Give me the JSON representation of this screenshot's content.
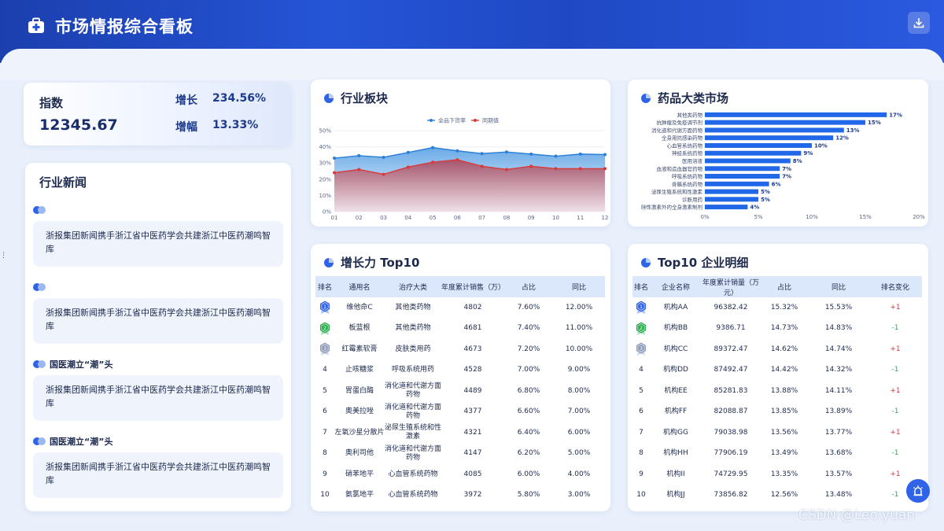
{
  "header": {
    "title": "市场情报综合看板"
  },
  "index_card": {
    "label": "指数",
    "value": "12345.67",
    "growth_label": "增长",
    "growth_value": "234.56%",
    "rise_label": "增幅",
    "rise_value": "13.33%"
  },
  "news": {
    "title": "行业新闻",
    "items": [
      {
        "tag": "",
        "text": "浙报集团新闻携手浙江省中医药学会共建浙江中医药潮鸣智库"
      },
      {
        "tag": "",
        "text": "浙报集团新闻携手浙江省中医药学会共建浙江中医药潮鸣智库"
      },
      {
        "tag": "国医潮立“潮”头",
        "text": "浙报集团新闻携手浙江省中医药学会共建浙江中医药潮鸣智库"
      },
      {
        "tag": "国医潮立“潮”头",
        "text": "浙报集团新闻携手浙江省中医药学会共建浙江中医药潮鸣智库"
      }
    ]
  },
  "sector_panel": {
    "title": "行业板块"
  },
  "drug_panel": {
    "title": "药品大类市场"
  },
  "growth_panel": {
    "title": "增长力 Top10",
    "headers": [
      "排名",
      "通用名",
      "治疗大类",
      "年度累计销售（万）",
      "占比",
      "同比"
    ],
    "rows": [
      [
        "1",
        "维他命C",
        "其他类药物",
        "4802",
        "7.60%",
        "12.00%"
      ],
      [
        "2",
        "板蓝根",
        "其他类药物",
        "4681",
        "7.40%",
        "11.00%"
      ],
      [
        "3",
        "红霉素软膏",
        "皮肤类用药",
        "4673",
        "7.20%",
        "10.00%"
      ],
      [
        "4",
        "止咳糖浆",
        "呼吸系统用药",
        "4528",
        "7.00%",
        "9.00%"
      ],
      [
        "5",
        "胃蛋白酶",
        "消化道和代谢方面药物",
        "4489",
        "6.80%",
        "8.00%"
      ],
      [
        "6",
        "奥美拉唑",
        "消化道和代谢方面药物",
        "4377",
        "6.60%",
        "7.00%"
      ],
      [
        "7",
        "左氧沙星分散片",
        "泌尿生殖系统和性激素",
        "4321",
        "6.40%",
        "6.00%"
      ],
      [
        "8",
        "奥利司他",
        "消化道和代谢方面药物",
        "4147",
        "6.20%",
        "5.00%"
      ],
      [
        "9",
        "硝苯地平",
        "心血管系统药物",
        "4085",
        "6.00%",
        "4.00%"
      ],
      [
        "10",
        "氨氯地平",
        "心血管系统药物",
        "3972",
        "5.80%",
        "3.00%"
      ]
    ]
  },
  "company_panel": {
    "title": "Top10 企业明细",
    "headers": [
      "排名",
      "企业名称",
      "年度累计销量（万元）",
      "占比",
      "同比",
      "排名变化"
    ],
    "rows": [
      [
        "1",
        "机构AA",
        "96382.42",
        "15.32%",
        "15.53%",
        "+1"
      ],
      [
        "2",
        "机构BB",
        "9386.71",
        "14.73%",
        "14.83%",
        "-1"
      ],
      [
        "3",
        "机构CC",
        "89372.47",
        "14.62%",
        "14.74%",
        "+1"
      ],
      [
        "4",
        "机构DD",
        "87492.47",
        "14.42%",
        "14.32%",
        "-1"
      ],
      [
        "5",
        "机构EE",
        "85281.83",
        "13.88%",
        "14.11%",
        "+1"
      ],
      [
        "6",
        "机构FF",
        "82088.87",
        "13.85%",
        "13.89%",
        "-1"
      ],
      [
        "7",
        "机构GG",
        "79038.98",
        "13.56%",
        "13.77%",
        "+1"
      ],
      [
        "8",
        "机构HH",
        "77906.19",
        "13.49%",
        "13.68%",
        "-1"
      ],
      [
        "9",
        "机构II",
        "74729.95",
        "13.35%",
        "13.57%",
        "+1"
      ],
      [
        "10",
        "机构JJ",
        "73856.82",
        "12.56%",
        "13.48%",
        "-1"
      ]
    ]
  },
  "colors": {
    "accent": "#2f63e8",
    "series_blue": "#2b7fd6",
    "series_red": "#d83a3a",
    "up": "#e0303a",
    "down": "#2bad4f"
  },
  "watermark": "CSDN @Leo.yuan",
  "chart_data": [
    {
      "type": "area",
      "categories": [
        "01",
        "02",
        "03",
        "04",
        "05",
        "06",
        "07",
        "08",
        "09",
        "10",
        "11",
        "12"
      ],
      "series": [
        {
          "name": "全品下货率",
          "values": [
            33,
            34.5,
            33.5,
            36.5,
            39.5,
            37.5,
            35.8,
            36.8,
            35.5,
            34.2,
            35.5,
            35.2
          ]
        },
        {
          "name": "同期值",
          "values": [
            24,
            26,
            23,
            27.5,
            30.5,
            32,
            28,
            26,
            28,
            26.5,
            26.5,
            26.5
          ]
        }
      ],
      "ylim": [
        0,
        50
      ],
      "yticks": [
        "0%",
        "10%",
        "20%",
        "30%",
        "40%",
        "50%"
      ],
      "legend": "top-center",
      "grid": true
    },
    {
      "type": "bar",
      "orientation": "horizontal",
      "categories": [
        "其他类药物",
        "抗肿瘤及免疫调节剂",
        "消化道和代谢方面药物",
        "全身用抗感染药物",
        "心血管系统药物",
        "神经系统药物",
        "医用溶液",
        "血液和造血器官药物",
        "呼吸系统药物",
        "骨骼系统药物",
        "泌尿生殖系统和性激素",
        "诊断用药",
        "除性激素外的全身激素制剂"
      ],
      "values": [
        17,
        15,
        13,
        12,
        10,
        9,
        8,
        7,
        7,
        6,
        5,
        5,
        4
      ],
      "value_labels": [
        "17%",
        "15%",
        "13%",
        "12%",
        "10%",
        "9%",
        "8%",
        "7%",
        "7%",
        "6%",
        "5%",
        "5%",
        "4%"
      ],
      "xlim": [
        0,
        20
      ],
      "xticks": [
        "0%",
        "5%",
        "10%",
        "15%",
        "20%"
      ],
      "grid": false
    }
  ]
}
